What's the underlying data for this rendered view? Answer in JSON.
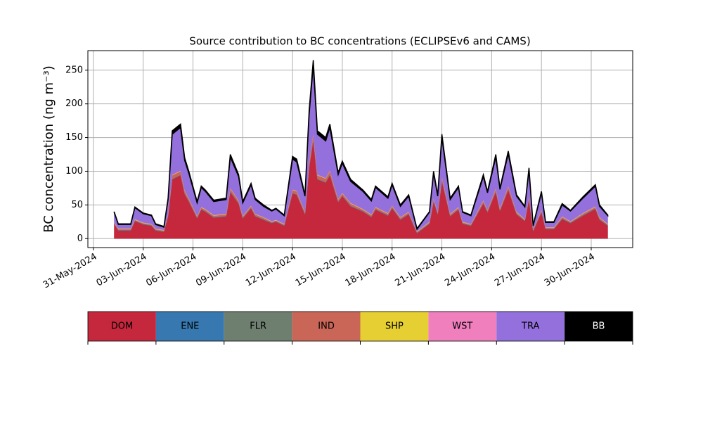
{
  "chart_data": {
    "type": "stacked_area",
    "title": "Source contribution to BC concentrations (ECLIPSEv6 and CAMS)",
    "y_label": "BC concentration (ng m⁻³)",
    "grid": true,
    "x": [
      "2024-06-01T06:00",
      "2024-06-01T12:00",
      "2024-06-02T06:00",
      "2024-06-02T12:00",
      "2024-06-03T00:00",
      "2024-06-03T12:00",
      "2024-06-03T18:00",
      "2024-06-04T06:00",
      "2024-06-04T12:00",
      "2024-06-04T18:00",
      "2024-06-05T06:00",
      "2024-06-05T12:00",
      "2024-06-05T18:00",
      "2024-06-06T06:00",
      "2024-06-06T12:00",
      "2024-06-06T18:00",
      "2024-06-07T06:00",
      "2024-06-08T00:00",
      "2024-06-08T06:00",
      "2024-06-08T18:00",
      "2024-06-09T00:00",
      "2024-06-09T12:00",
      "2024-06-09T18:00",
      "2024-06-10T06:00",
      "2024-06-10T18:00",
      "2024-06-11T00:00",
      "2024-06-11T12:00",
      "2024-06-12T00:00",
      "2024-06-12T06:00",
      "2024-06-12T18:00",
      "2024-06-13T00:00",
      "2024-06-13T06:00",
      "2024-06-13T12:00",
      "2024-06-14T00:00",
      "2024-06-14T06:00",
      "2024-06-14T18:00",
      "2024-06-15T00:00",
      "2024-06-15T12:00",
      "2024-06-16T06:00",
      "2024-06-16T18:00",
      "2024-06-17T00:00",
      "2024-06-17T18:00",
      "2024-06-18T00:00",
      "2024-06-18T12:00",
      "2024-06-19T00:00",
      "2024-06-19T12:00",
      "2024-06-20T06:00",
      "2024-06-20T12:00",
      "2024-06-20T18:00",
      "2024-06-21T00:00",
      "2024-06-21T12:00",
      "2024-06-22T00:00",
      "2024-06-22T06:00",
      "2024-06-22T18:00",
      "2024-06-23T12:00",
      "2024-06-23T18:00",
      "2024-06-24T06:00",
      "2024-06-24T12:00",
      "2024-06-25T00:00",
      "2024-06-25T12:00",
      "2024-06-26T00:00",
      "2024-06-26T06:00",
      "2024-06-26T12:00",
      "2024-06-27T00:00",
      "2024-06-27T06:00",
      "2024-06-27T18:00",
      "2024-06-28T06:00",
      "2024-06-28T18:00",
      "2024-06-29T12:00",
      "2024-06-30T06:00",
      "2024-06-30T12:00",
      "2024-07-01T00:00"
    ],
    "series": [
      {
        "name": "DOM",
        "color": "#c5283d",
        "values": [
          22,
          12,
          12,
          26,
          21,
          19,
          12,
          10,
          33,
          88,
          94,
          66,
          55,
          30,
          43,
          40,
          31,
          33,
          69,
          52,
          30,
          45,
          33,
          28,
          23,
          25,
          19,
          67,
          65,
          36,
          105,
          146,
          88,
          83,
          94,
          54,
          63,
          48,
          40,
          32,
          43,
          34,
          45,
          28,
          36,
          8,
          22,
          55,
          36,
          85,
          33,
          43,
          22,
          19,
          52,
          39,
          69,
          41,
          72,
          36,
          26,
          58,
          11,
          39,
          14,
          14,
          29,
          23,
          34,
          44,
          28,
          19
        ]
      },
      {
        "name": "ENE",
        "color": "#3778b0",
        "values": [
          0.5,
          0.5,
          0.5,
          0.5,
          0.5,
          0.5,
          0.5,
          0.5,
          0.5,
          0.5,
          0.5,
          0.5,
          0.5,
          0.5,
          0.5,
          0.5,
          0.5,
          0.5,
          0.5,
          0.5,
          0.5,
          0.5,
          0.5,
          0.5,
          0.5,
          0.5,
          0.5,
          0.5,
          0.5,
          0.5,
          0.5,
          0.5,
          0.5,
          0.5,
          0.5,
          0.5,
          0.5,
          0.5,
          0.5,
          0.5,
          0.5,
          0.5,
          0.5,
          0.5,
          0.5,
          0.5,
          0.5,
          0.5,
          0.5,
          0.5,
          0.5,
          0.5,
          0.5,
          0.5,
          0.5,
          0.5,
          0.5,
          0.5,
          0.5,
          0.5,
          0.5,
          0.5,
          0.5,
          0.5,
          0.5,
          0.5,
          0.5,
          0.5,
          0.5,
          0.5,
          0.5,
          0.5
        ]
      },
      {
        "name": "FLR",
        "color": "#6e7f70",
        "values": [
          0.5,
          0.5,
          0.5,
          0.5,
          0.5,
          0.5,
          0.5,
          0.5,
          0.5,
          0.5,
          0.5,
          0.5,
          0.5,
          0.5,
          0.5,
          0.5,
          0.5,
          0.5,
          0.5,
          0.5,
          0.5,
          0.5,
          0.5,
          0.5,
          0.5,
          0.5,
          0.5,
          0.5,
          0.5,
          0.5,
          0.5,
          0.5,
          0.5,
          0.5,
          0.5,
          0.5,
          0.5,
          0.5,
          0.5,
          0.5,
          0.5,
          0.5,
          0.5,
          0.5,
          0.5,
          0.5,
          0.5,
          0.5,
          0.5,
          0.5,
          0.5,
          0.5,
          0.5,
          0.5,
          0.5,
          0.5,
          0.5,
          0.5,
          0.5,
          0.5,
          0.5,
          0.5,
          0.5,
          0.5,
          0.5,
          0.5,
          0.5,
          0.5,
          0.5,
          0.5,
          0.5,
          0.5
        ]
      },
      {
        "name": "IND",
        "color": "#c96658",
        "values": [
          1,
          1,
          1,
          1,
          1,
          1,
          1,
          1,
          2,
          5,
          5,
          4,
          3,
          2,
          2,
          2,
          2,
          2,
          4,
          3,
          2,
          2,
          2,
          2,
          1,
          1,
          1,
          4,
          4,
          2,
          6,
          8,
          5,
          5,
          5,
          3,
          3,
          3,
          2,
          2,
          2,
          2,
          2,
          2,
          2,
          1,
          1,
          3,
          2,
          5,
          2,
          2,
          1,
          1,
          3,
          2,
          4,
          2,
          4,
          2,
          1,
          3,
          1,
          2,
          1,
          1,
          2,
          1,
          2,
          2,
          2,
          1
        ]
      },
      {
        "name": "SHP",
        "color": "#e6cf32",
        "values": [
          0.5,
          0.5,
          0.5,
          0.5,
          0.5,
          0.5,
          0.5,
          0.5,
          0.5,
          0.5,
          0.5,
          0.5,
          0.5,
          0.5,
          0.5,
          0.5,
          0.5,
          0.5,
          0.5,
          0.5,
          0.5,
          0.5,
          0.5,
          0.5,
          0.5,
          0.5,
          0.5,
          0.5,
          0.5,
          0.5,
          0.5,
          0.5,
          0.5,
          0.5,
          0.5,
          0.5,
          0.5,
          0.5,
          0.5,
          0.5,
          0.5,
          0.5,
          0.5,
          0.5,
          0.5,
          0.5,
          0.5,
          0.5,
          0.5,
          0.5,
          0.5,
          0.5,
          0.5,
          0.5,
          0.5,
          0.5,
          0.5,
          0.5,
          0.5,
          0.5,
          0.5,
          0.5,
          0.5,
          0.5,
          0.5,
          0.5,
          0.5,
          0.5,
          0.5,
          0.5,
          0.5,
          0.5
        ]
      },
      {
        "name": "WST",
        "color": "#f07fbd",
        "values": [
          0.5,
          0.5,
          0.5,
          0.5,
          0.5,
          0.5,
          0.5,
          0.5,
          0.5,
          0.5,
          0.5,
          0.5,
          0.5,
          0.5,
          0.5,
          0.5,
          0.5,
          0.5,
          0.5,
          0.5,
          0.5,
          0.5,
          0.5,
          0.5,
          0.5,
          0.5,
          0.5,
          0.5,
          0.5,
          0.5,
          0.5,
          0.5,
          0.5,
          0.5,
          0.5,
          0.5,
          0.5,
          0.5,
          0.5,
          0.5,
          0.5,
          0.5,
          0.5,
          0.5,
          0.5,
          0.5,
          0.5,
          0.5,
          0.5,
          0.5,
          0.5,
          0.5,
          0.5,
          0.5,
          0.5,
          0.5,
          0.5,
          0.5,
          0.5,
          0.5,
          0.5,
          0.5,
          0.5,
          0.5,
          0.5,
          0.5,
          0.5,
          0.5,
          0.5,
          0.5,
          0.5,
          0.5
        ]
      },
      {
        "name": "TRA",
        "color": "#9370db",
        "values": [
          14,
          6,
          6,
          17,
          13,
          12,
          6,
          4,
          21,
          60,
          64,
          44,
          37,
          19,
          29,
          26,
          20,
          21,
          46,
          35,
          19,
          31,
          21,
          16,
          15,
          16,
          12,
          45,
          43,
          23,
          71,
          101,
          60,
          55,
          64,
          36,
          44,
          32,
          26,
          20,
          29,
          22,
          31,
          16,
          23,
          3,
          14,
          37,
          23,
          58,
          21,
          29,
          14,
          12,
          35,
          25,
          46,
          28,
          48,
          23,
          18,
          39,
          5,
          25,
          7,
          7,
          17,
          15,
          22,
          30,
          16,
          12
        ]
      },
      {
        "name": "BB",
        "color": "#000000",
        "values": [
          1,
          1,
          1,
          1,
          1,
          1,
          1,
          1,
          2,
          5,
          5,
          4,
          3,
          2,
          2,
          2,
          2,
          2,
          4,
          3,
          2,
          2,
          2,
          2,
          1,
          1,
          1,
          4,
          4,
          2,
          6,
          8,
          5,
          5,
          5,
          3,
          3,
          3,
          2,
          2,
          2,
          2,
          2,
          2,
          2,
          1,
          1,
          3,
          2,
          5,
          2,
          2,
          1,
          1,
          3,
          2,
          4,
          2,
          4,
          2,
          1,
          3,
          1,
          2,
          1,
          1,
          2,
          1,
          2,
          2,
          2,
          1
        ]
      }
    ],
    "xlim": [
      "2024-05-30T16:00",
      "2024-07-02T12:00"
    ],
    "xticks": [
      {
        "value": "2024-05-31",
        "label": "31-May-2024"
      },
      {
        "value": "2024-06-03",
        "label": "03-Jun-2024"
      },
      {
        "value": "2024-06-06",
        "label": "06-Jun-2024"
      },
      {
        "value": "2024-06-09",
        "label": "09-Jun-2024"
      },
      {
        "value": "2024-06-12",
        "label": "12-Jun-2024"
      },
      {
        "value": "2024-06-15",
        "label": "15-Jun-2024"
      },
      {
        "value": "2024-06-18",
        "label": "18-Jun-2024"
      },
      {
        "value": "2024-06-21",
        "label": "21-Jun-2024"
      },
      {
        "value": "2024-06-24",
        "label": "24-Jun-2024"
      },
      {
        "value": "2024-06-27",
        "label": "27-Jun-2024"
      },
      {
        "value": "2024-06-30",
        "label": "30-Jun-2024"
      }
    ],
    "ylim": [
      -13.3,
      279
    ],
    "yticks": [
      0,
      50,
      100,
      150,
      200,
      250
    ],
    "legend": "below"
  }
}
